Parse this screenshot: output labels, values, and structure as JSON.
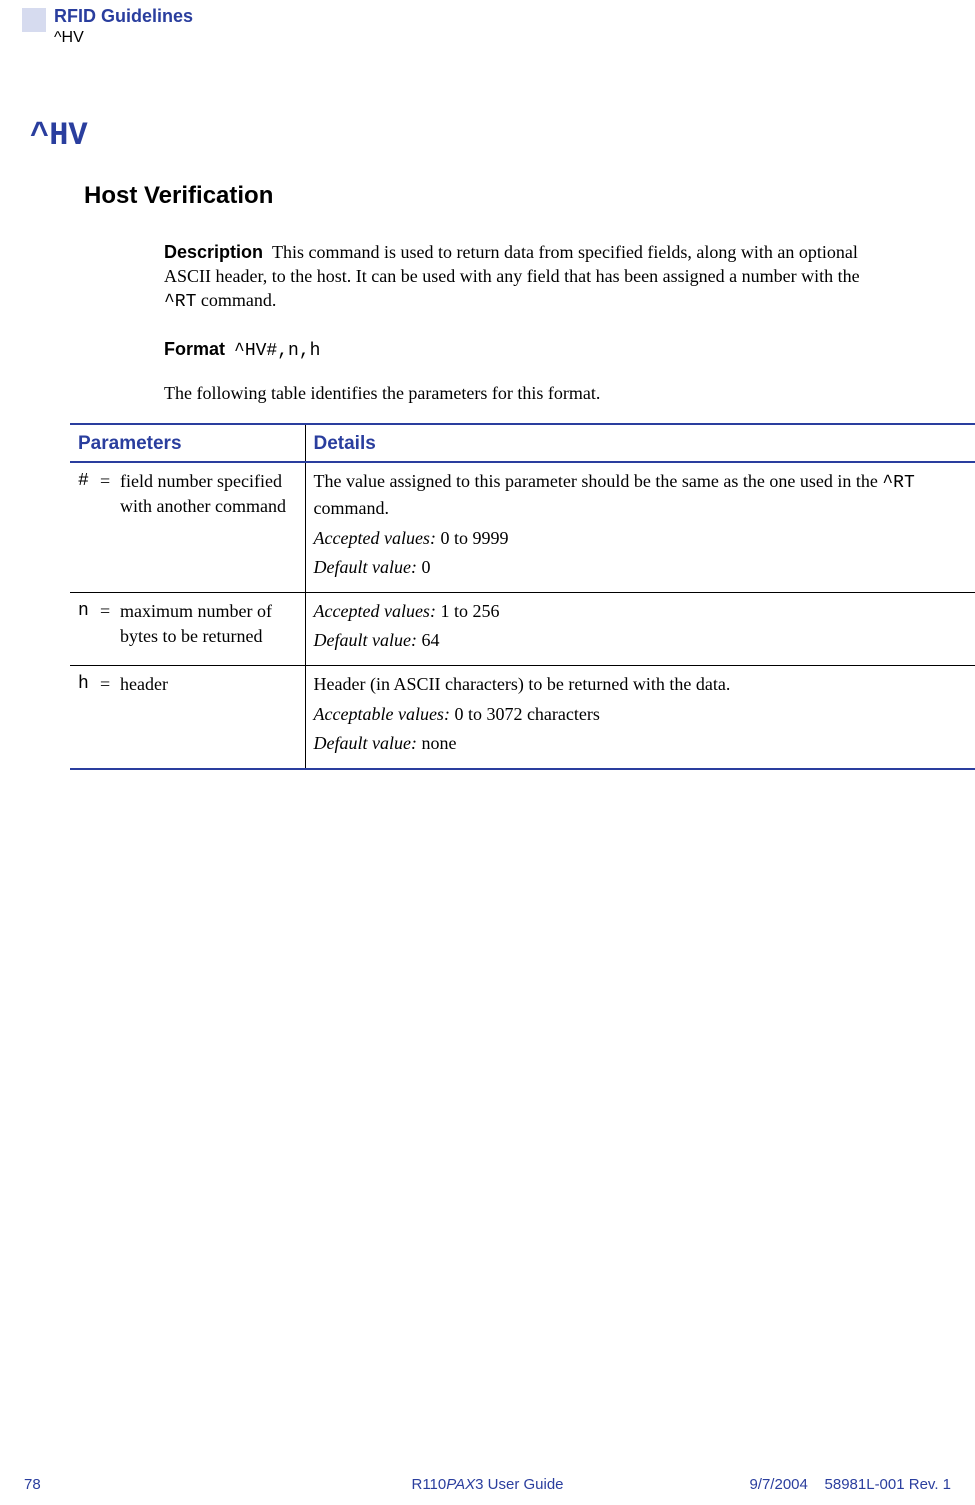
{
  "header": {
    "title": "RFID Guidelines",
    "subtitle": "^HV"
  },
  "command": {
    "name": "^HV",
    "subtitle": "Host Verification"
  },
  "description": {
    "label": "Description",
    "text_before": "This command is used to return data from specified fields, along with an optional ASCII header, to the host. It can be used with any field that has been assigned a number with the ",
    "code": "^RT",
    "text_after": " command."
  },
  "format": {
    "label": "Format",
    "value": "^HV#,n,h"
  },
  "intro": "The following table identifies the parameters for this format.",
  "table": {
    "col_parameters": "Parameters",
    "col_details": "Details",
    "rows": [
      {
        "symbol": "#",
        "eq": "=",
        "param_text": "field number specified with another command",
        "detail_text_before": "The value assigned to this parameter should be the same as the one used in the ",
        "detail_code": "^RT",
        "detail_text_after": " command.",
        "accepted_label": "Accepted values:",
        "accepted_value": " 0 to 9999",
        "default_label": "Default value:",
        "default_value": " 0"
      },
      {
        "symbol": "n",
        "eq": "=",
        "param_text": "maximum number of bytes to be returned",
        "detail_text_before": "",
        "detail_code": "",
        "detail_text_after": "",
        "accepted_label": "Accepted values:",
        "accepted_value": " 1 to 256",
        "default_label": "Default value:",
        "default_value": " 64"
      },
      {
        "symbol": "h",
        "eq": "=",
        "param_text": "header",
        "detail_text_before": "Header (in ASCII characters) to be returned with the data.",
        "detail_code": "",
        "detail_text_after": "",
        "accepted_label": "Acceptable values:",
        "accepted_value": " 0 to 3072 characters",
        "default_label": "Default value:",
        "default_value": " none"
      }
    ]
  },
  "footer": {
    "page": "78",
    "guide_prefix": "R110",
    "guide_ital": "PAX",
    "guide_suffix": "3 User Guide",
    "date_rev": "9/7/2004    58981L-001 Rev. 1"
  }
}
